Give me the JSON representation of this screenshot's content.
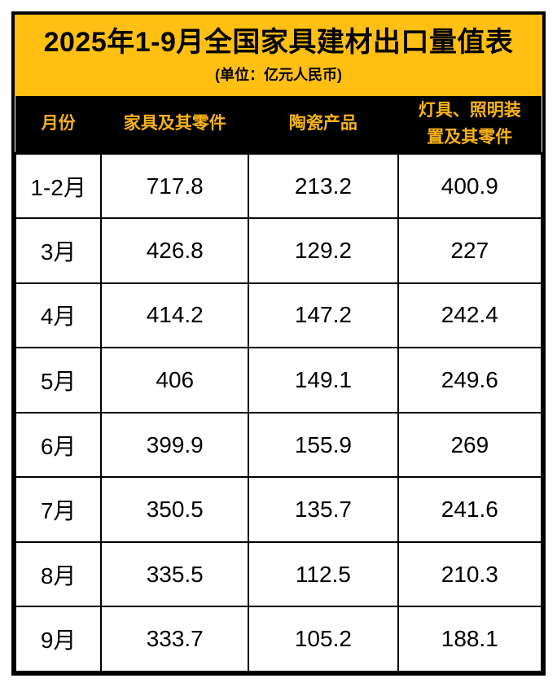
{
  "chart_data": {
    "type": "table",
    "title": "2025年1-9月全国家具建材出口量值表",
    "subtitle": "(单位：亿元人民币)",
    "unit": "亿元人民币",
    "columns": [
      "月份",
      "家具及其零件",
      "陶瓷产品",
      "灯具、照明装置及其零件"
    ],
    "rows": [
      [
        "1-2月",
        717.8,
        213.2,
        400.9
      ],
      [
        "3月",
        426.8,
        129.2,
        227
      ],
      [
        "4月",
        414.2,
        147.2,
        242.4
      ],
      [
        "5月",
        406,
        149.1,
        249.6
      ],
      [
        "6月",
        399.9,
        155.9,
        269
      ],
      [
        "7月",
        350.5,
        135.7,
        241.6
      ],
      [
        "8月",
        335.5,
        112.5,
        210.3
      ],
      [
        "9月",
        333.7,
        105.2,
        188.1
      ]
    ]
  },
  "colors": {
    "title_band_bg": "#FFC013",
    "header_bg": "#000000",
    "header_text": "#F9B315",
    "border": "#000000",
    "cell_bg": "#FFFFFF",
    "cell_text": "#000000"
  }
}
